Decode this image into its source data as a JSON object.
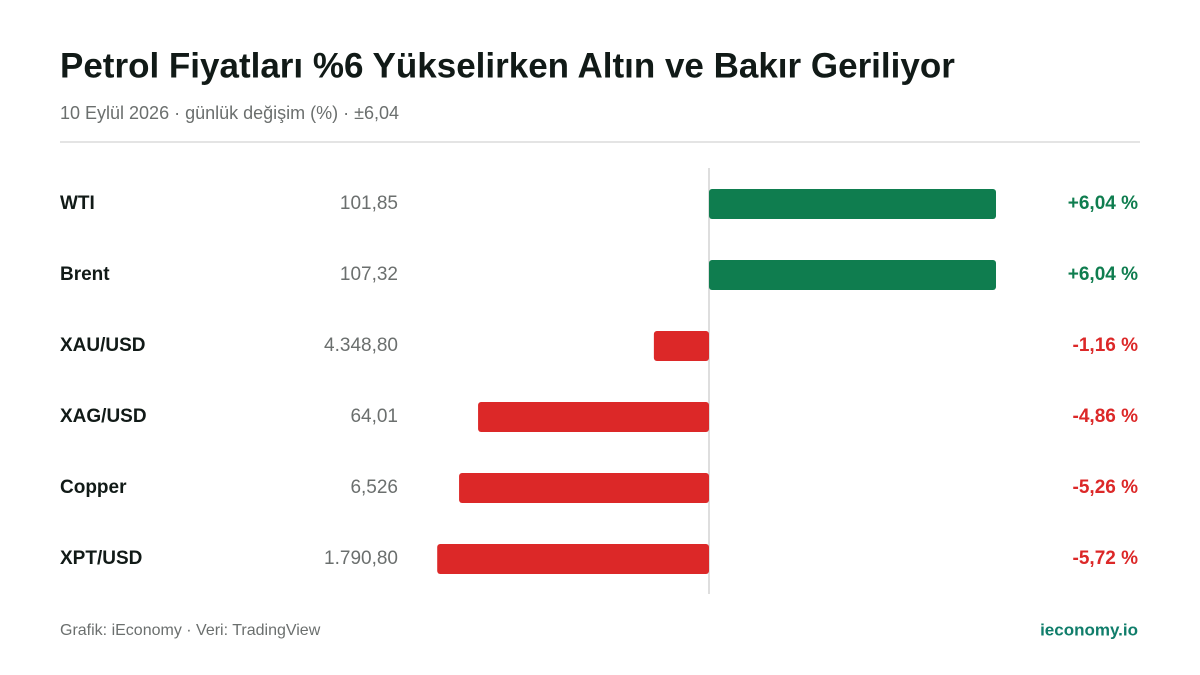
{
  "chart_data": {
    "type": "diverging-bar",
    "title": "Petrol Fiyatları %6 Yükselirken Altın ve Bakır Geriliyor",
    "subtitle": "10 Eylül 2026 · günlük değişim (%) · ±6,04",
    "categories": [
      "WTI",
      "Brent",
      "XAU/USD",
      "XAG/USD",
      "Copper",
      "XPT/USD"
    ],
    "prices": [
      "101,85",
      "107,32",
      "4.348,80",
      "64,01",
      "6,526",
      "1.790,80"
    ],
    "values": [
      6.04,
      6.04,
      -1.16,
      -4.86,
      -5.26,
      -5.72
    ],
    "value_labels": [
      "+6,04 %",
      "+6,04 %",
      "-1,16 %",
      "-4,86 %",
      "-5,26 %",
      "-5,72 %"
    ],
    "xlim": [
      -6.04,
      6.04
    ],
    "positive_color": "#0f7d4f",
    "negative_color": "#dc2828",
    "source": "Grafik: iEconomy · Veri: TradingView",
    "brand": "ieconomy.io"
  }
}
